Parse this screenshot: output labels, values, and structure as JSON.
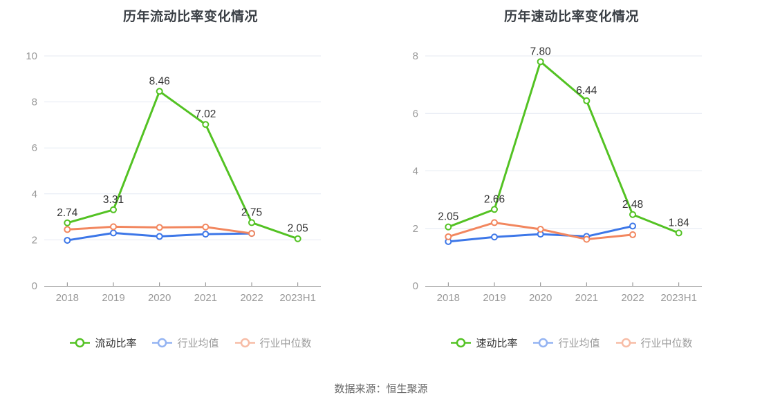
{
  "page": {
    "background": "#ffffff",
    "source_note": "数据来源：恒生聚源"
  },
  "colors": {
    "series_primary": "#53c223",
    "series_mean": "#3d77e8",
    "series_median": "#f2875f",
    "grid_line": "#e4e9f2",
    "axis_line": "#888888",
    "tick_label": "#999999",
    "data_label": "#333333",
    "title": "#3a3f45",
    "legend_active_text": "#333333",
    "legend_muted_text": "#9b9b9b",
    "source_text": "#666666"
  },
  "chart_data": [
    {
      "type": "line",
      "title": "历年流动比率变化情况",
      "categories": [
        "2018",
        "2019",
        "2020",
        "2021",
        "2022",
        "2023H1"
      ],
      "ylim": [
        0,
        10
      ],
      "yticks": [
        0,
        2,
        4,
        6,
        8,
        10
      ],
      "grid": "on",
      "legend_position": "bottom",
      "series": [
        {
          "name": "流动比率",
          "color_key": "series_primary",
          "legend_state": "active",
          "values": [
            2.74,
            3.31,
            8.46,
            7.02,
            2.75,
            2.05
          ],
          "point_labels": [
            "2.74",
            "3.31",
            "8.46",
            "7.02",
            "2.75",
            "2.05"
          ]
        },
        {
          "name": "行业均值",
          "color_key": "series_mean",
          "legend_state": "muted",
          "values": [
            1.98,
            2.3,
            2.15,
            2.25,
            2.28,
            null
          ]
        },
        {
          "name": "行业中位数",
          "color_key": "series_median",
          "legend_state": "muted",
          "values": [
            2.45,
            2.57,
            2.54,
            2.56,
            2.28,
            null
          ]
        }
      ]
    },
    {
      "type": "line",
      "title": "历年速动比率变化情况",
      "categories": [
        "2018",
        "2019",
        "2020",
        "2021",
        "2022",
        "2023H1"
      ],
      "ylim": [
        0,
        8
      ],
      "yticks": [
        0,
        2,
        4,
        6,
        8
      ],
      "grid": "on",
      "legend_position": "bottom",
      "series": [
        {
          "name": "速动比率",
          "color_key": "series_primary",
          "legend_state": "active",
          "values": [
            2.05,
            2.66,
            7.8,
            6.44,
            2.48,
            1.84
          ],
          "point_labels": [
            "2.05",
            "2.66",
            "7.80",
            "6.44",
            "2.48",
            "1.84"
          ]
        },
        {
          "name": "行业均值",
          "color_key": "series_mean",
          "legend_state": "muted",
          "values": [
            1.54,
            1.7,
            1.8,
            1.72,
            2.08,
            null
          ]
        },
        {
          "name": "行业中位数",
          "color_key": "series_median",
          "legend_state": "muted",
          "values": [
            1.71,
            2.2,
            1.97,
            1.62,
            1.78,
            null
          ]
        }
      ]
    }
  ]
}
